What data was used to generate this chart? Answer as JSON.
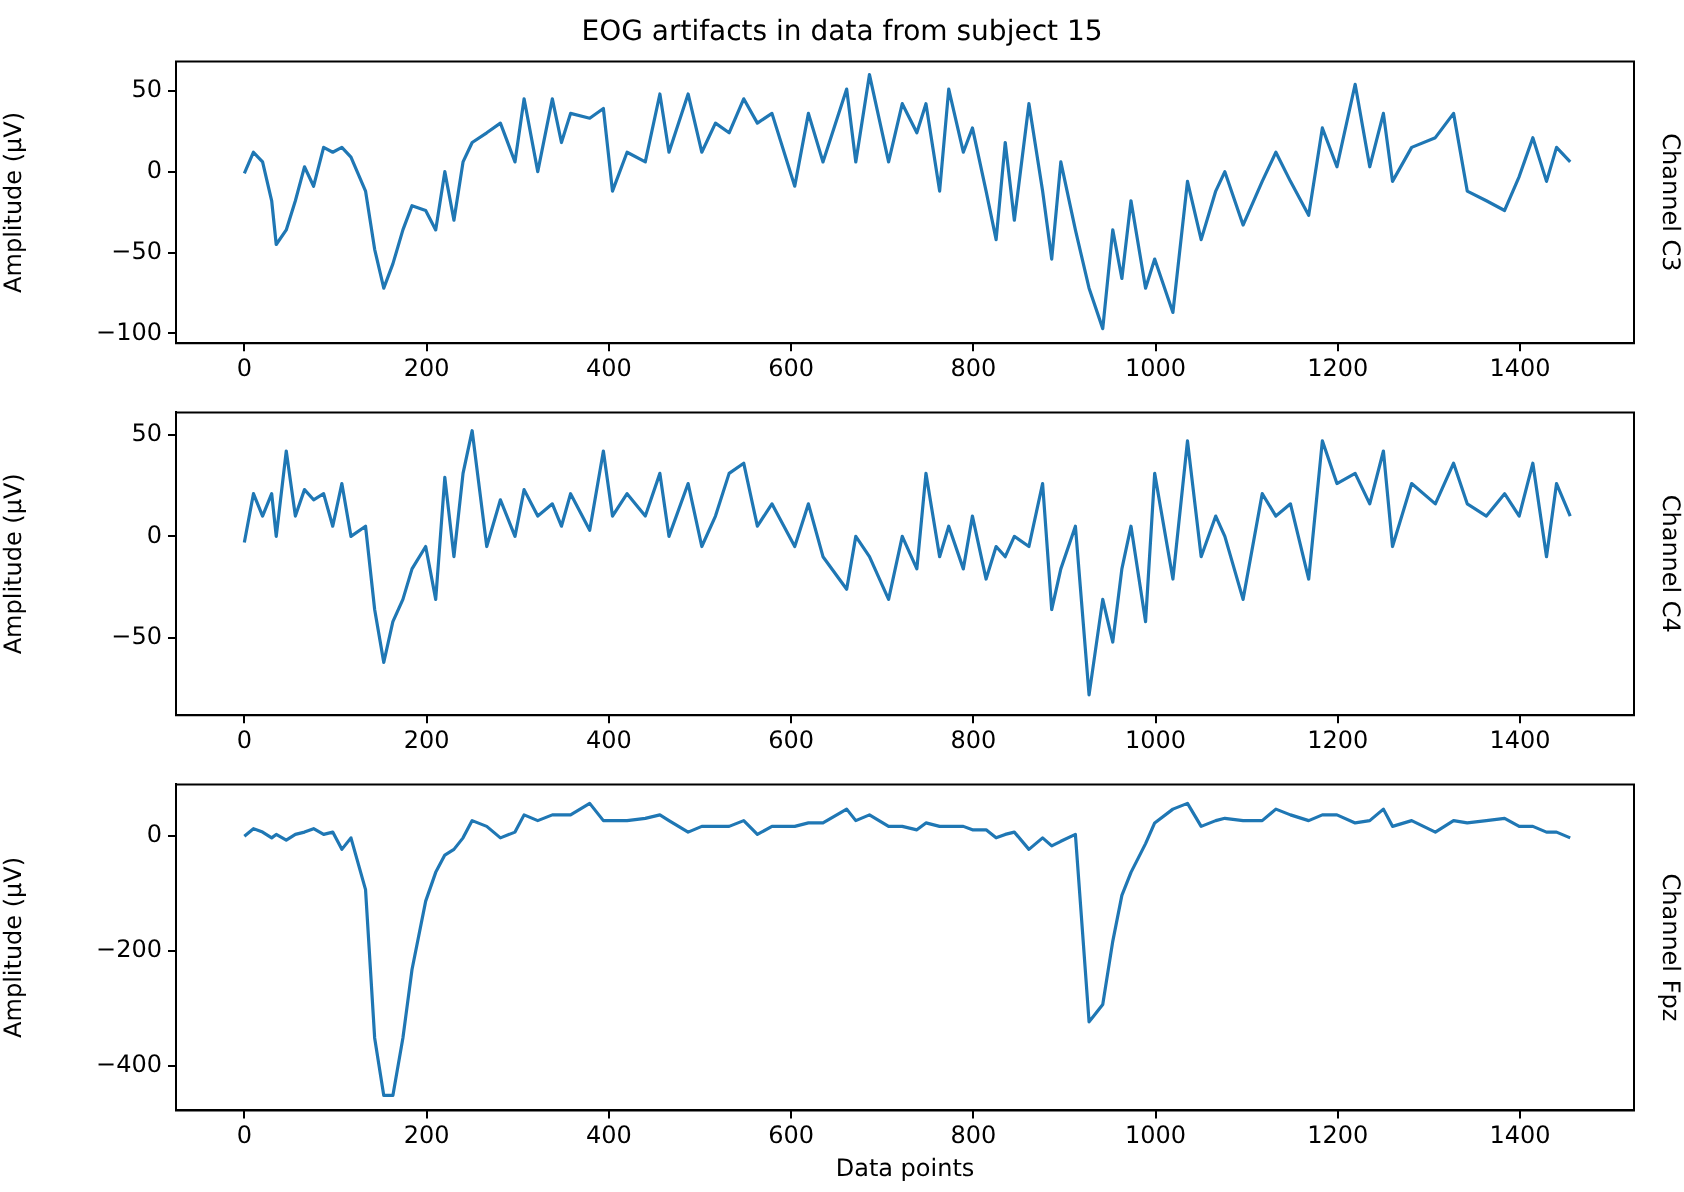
{
  "chart_data": [
    {
      "type": "line",
      "title": "EOG artifacts in data from subject 15",
      "ylabel": "Amplitude (µV)",
      "y2label": "Channel C3",
      "marker": "none",
      "xlim": [
        -75,
        1525
      ],
      "xticks": [
        0,
        200,
        400,
        600,
        800,
        1000,
        1200,
        1400
      ],
      "ylim": [
        -106,
        68
      ],
      "yticks": [
        -100,
        -50,
        0,
        50
      ],
      "x": [
        0,
        10,
        20,
        30,
        35,
        46,
        56,
        66,
        76,
        87,
        97,
        107,
        117,
        133,
        143,
        153,
        163,
        174,
        184,
        199,
        210,
        220,
        230,
        240,
        250,
        266,
        281,
        297,
        307,
        322,
        338,
        348,
        358,
        379,
        394,
        404,
        420,
        440,
        456,
        466,
        487,
        502,
        517,
        532,
        548,
        563,
        579,
        604,
        619,
        635,
        661,
        671,
        686,
        707,
        722,
        738,
        748,
        763,
        773,
        789,
        799,
        814,
        825,
        835,
        845,
        861,
        876,
        886,
        896,
        912,
        927,
        942,
        953,
        963,
        973,
        989,
        999,
        1019,
        1035,
        1050,
        1066,
        1076,
        1096,
        1117,
        1132,
        1148,
        1168,
        1183,
        1199,
        1219,
        1235,
        1250,
        1260,
        1281,
        1307,
        1327,
        1342,
        1363,
        1383,
        1399,
        1414,
        1429,
        1440,
        1455
      ],
      "series": [
        {
          "color": "#1f77b4",
          "values": [
            -1,
            12,
            6,
            -18,
            -45,
            -36,
            -18,
            3,
            -9,
            15,
            12,
            15,
            9,
            -12,
            -48,
            -72,
            -57,
            -36,
            -21,
            -24,
            -36,
            0,
            -30,
            6,
            18,
            24,
            30,
            6,
            45,
            0,
            45,
            18,
            36,
            33,
            39,
            -12,
            12,
            6,
            48,
            12,
            48,
            12,
            30,
            24,
            45,
            30,
            36,
            -9,
            36,
            6,
            51,
            6,
            60,
            6,
            42,
            24,
            42,
            -12,
            51,
            12,
            27,
            -12,
            -42,
            18,
            -30,
            42,
            -12,
            -54,
            6,
            -36,
            -72,
            -97,
            -36,
            -66,
            -18,
            -72,
            -54,
            -87,
            -6,
            -42,
            -12,
            0,
            -33,
            -6,
            12,
            -6,
            -27,
            27,
            3,
            54,
            3,
            36,
            -6,
            15,
            21,
            36,
            -12,
            -18,
            -24,
            -3,
            21,
            -6,
            15,
            6
          ]
        }
      ]
    },
    {
      "type": "line",
      "ylabel": "Amplitude (µV)",
      "y2label": "Channel C4",
      "marker": "none",
      "xlim": [
        -75,
        1525
      ],
      "xticks": [
        0,
        200,
        400,
        600,
        800,
        1000,
        1200,
        1400
      ],
      "ylim": [
        -88,
        61
      ],
      "yticks": [
        -50,
        0,
        50
      ],
      "x": [
        0,
        10,
        20,
        30,
        35,
        46,
        56,
        66,
        76,
        87,
        97,
        107,
        117,
        133,
        143,
        153,
        163,
        174,
        184,
        199,
        210,
        220,
        230,
        240,
        250,
        266,
        281,
        297,
        307,
        322,
        338,
        348,
        358,
        379,
        394,
        404,
        420,
        440,
        456,
        466,
        487,
        502,
        517,
        532,
        548,
        563,
        579,
        604,
        619,
        635,
        661,
        671,
        686,
        707,
        722,
        738,
        748,
        763,
        773,
        789,
        799,
        814,
        825,
        835,
        845,
        861,
        876,
        886,
        896,
        912,
        927,
        942,
        953,
        963,
        973,
        989,
        999,
        1019,
        1035,
        1050,
        1066,
        1076,
        1096,
        1117,
        1132,
        1148,
        1168,
        1183,
        1199,
        1219,
        1235,
        1250,
        1260,
        1281,
        1307,
        1327,
        1342,
        1363,
        1383,
        1399,
        1414,
        1429,
        1440,
        1455
      ],
      "series": [
        {
          "color": "#1f77b4",
          "values": [
            -3,
            21,
            10,
            21,
            0,
            42,
            10,
            23,
            18,
            21,
            5,
            26,
            0,
            5,
            -36,
            -62,
            -42,
            -31,
            -16,
            -5,
            -31,
            29,
            -10,
            31,
            52,
            -5,
            18,
            0,
            23,
            10,
            16,
            5,
            21,
            3,
            42,
            10,
            21,
            10,
            31,
            0,
            26,
            -5,
            10,
            31,
            36,
            5,
            16,
            -5,
            16,
            -10,
            -26,
            0,
            -10,
            -31,
            0,
            -16,
            31,
            -10,
            5,
            -16,
            10,
            -21,
            -5,
            -10,
            0,
            -5,
            26,
            -36,
            -16,
            5,
            -78,
            -31,
            -52,
            -16,
            5,
            -42,
            31,
            -21,
            47,
            -10,
            10,
            0,
            -31,
            21,
            10,
            16,
            -21,
            47,
            26,
            31,
            16,
            42,
            -5,
            26,
            16,
            36,
            16,
            10,
            21,
            10,
            36,
            -10,
            26,
            10
          ]
        }
      ]
    },
    {
      "type": "line",
      "ylabel": "Amplitude (µV)",
      "y2label": "Channel Fpz",
      "xlabel": "Data points",
      "marker": "none",
      "xlim": [
        -75,
        1525
      ],
      "xticks": [
        0,
        200,
        400,
        600,
        800,
        1000,
        1200,
        1400
      ],
      "ylim": [
        -477,
        90
      ],
      "yticks": [
        -400,
        -200,
        0
      ],
      "x": [
        0,
        10,
        20,
        30,
        35,
        46,
        56,
        66,
        76,
        87,
        97,
        107,
        117,
        133,
        143,
        153,
        163,
        174,
        184,
        199,
        210,
        220,
        230,
        240,
        250,
        266,
        281,
        297,
        307,
        322,
        338,
        348,
        358,
        379,
        394,
        404,
        420,
        440,
        456,
        466,
        487,
        502,
        517,
        532,
        548,
        563,
        579,
        604,
        619,
        635,
        661,
        671,
        686,
        707,
        722,
        738,
        748,
        763,
        773,
        789,
        799,
        814,
        825,
        835,
        845,
        861,
        876,
        886,
        896,
        912,
        927,
        942,
        953,
        963,
        973,
        989,
        999,
        1019,
        1035,
        1050,
        1066,
        1076,
        1096,
        1117,
        1132,
        1148,
        1168,
        1183,
        1199,
        1219,
        1235,
        1250,
        1260,
        1281,
        1307,
        1327,
        1342,
        1363,
        1383,
        1399,
        1414,
        1429,
        1440,
        1455
      ],
      "series": [
        {
          "color": "#1f77b4",
          "values": [
            0,
            13,
            7,
            -3,
            3,
            -7,
            3,
            7,
            13,
            3,
            7,
            -23,
            -3,
            -93,
            -351,
            -451,
            -451,
            -351,
            -232,
            -113,
            -63,
            -33,
            -23,
            -3,
            27,
            17,
            -3,
            7,
            37,
            27,
            37,
            37,
            37,
            57,
            27,
            27,
            27,
            31,
            37,
            27,
            7,
            17,
            17,
            17,
            27,
            3,
            17,
            17,
            23,
            23,
            47,
            27,
            37,
            17,
            17,
            11,
            23,
            17,
            17,
            17,
            11,
            11,
            -3,
            3,
            7,
            -23,
            -3,
            -17,
            -9,
            3,
            -323,
            -293,
            -183,
            -103,
            -63,
            -13,
            23,
            47,
            57,
            17,
            27,
            31,
            27,
            27,
            47,
            37,
            27,
            37,
            37,
            23,
            27,
            47,
            17,
            27,
            7,
            27,
            23,
            27,
            31,
            17,
            17,
            7,
            7,
            -3
          ]
        }
      ]
    }
  ]
}
